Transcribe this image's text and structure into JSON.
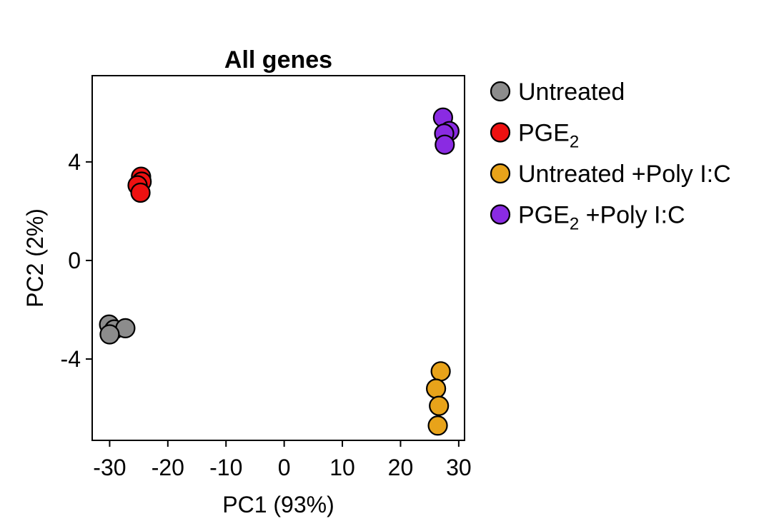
{
  "chart_data": {
    "type": "scatter",
    "title": "All genes",
    "xlabel": "PC1 (93%)",
    "ylabel": "PC2 (2%)",
    "xlim": [
      -33,
      31
    ],
    "ylim": [
      -7.3,
      7.5
    ],
    "xticks": [
      -30,
      -20,
      -10,
      0,
      10,
      20,
      30
    ],
    "yticks": [
      -4,
      0,
      4
    ],
    "grid": false,
    "legend_position": "right",
    "series": [
      {
        "name": "Untreated",
        "label_main": "Untreated",
        "label_sub": "",
        "label_suffix": "",
        "color": "#8c8c8c",
        "points": [
          [
            -30.1,
            -2.6
          ],
          [
            -29.2,
            -2.8
          ],
          [
            -27.3,
            -2.75
          ],
          [
            -30.0,
            -3.0
          ]
        ]
      },
      {
        "name": "PGE2",
        "label_main": "PGE",
        "label_sub": "2",
        "label_suffix": "",
        "color": "#ee1111",
        "points": [
          [
            -24.6,
            3.4
          ],
          [
            -24.5,
            3.2
          ],
          [
            -25.2,
            3.05
          ],
          [
            -24.7,
            2.75
          ]
        ]
      },
      {
        "name": "Untreated +Poly I:C",
        "label_main": "Untreated +Poly I:C",
        "label_sub": "",
        "label_suffix": "",
        "color": "#e8a31a",
        "points": [
          [
            26.9,
            -4.5
          ],
          [
            26.1,
            -5.2
          ],
          [
            26.6,
            -5.9
          ],
          [
            26.4,
            -6.7
          ]
        ]
      },
      {
        "name": "PGE2 +Poly I:C",
        "label_main": "PGE",
        "label_sub": "2",
        "label_suffix": " +Poly I:C",
        "color": "#8a2be2",
        "points": [
          [
            27.3,
            5.8
          ],
          [
            28.4,
            5.25
          ],
          [
            27.5,
            5.15
          ],
          [
            27.6,
            4.7
          ]
        ]
      }
    ]
  }
}
